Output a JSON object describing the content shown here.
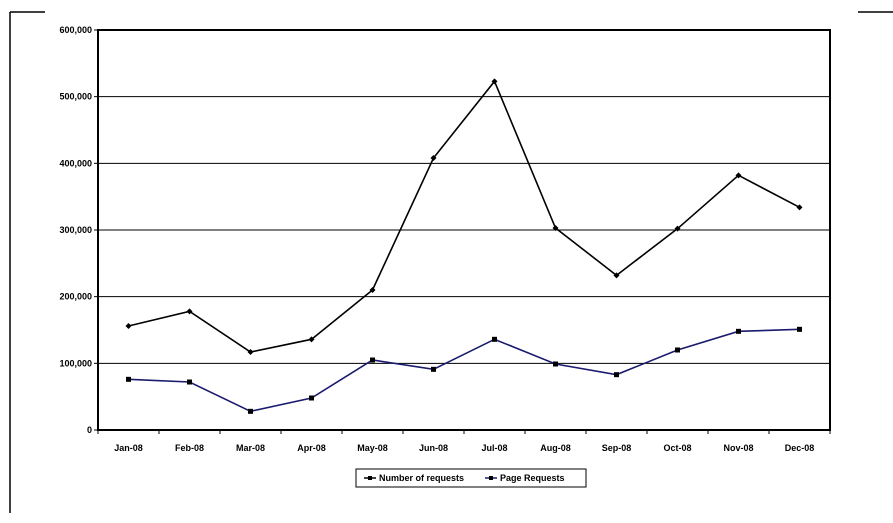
{
  "chart_data": {
    "type": "line",
    "title": "",
    "xlabel": "",
    "ylabel": "",
    "categories": [
      "Jan-08",
      "Feb-08",
      "Mar-08",
      "Apr-08",
      "May-08",
      "Jun-08",
      "Jul-08",
      "Aug-08",
      "Sep-08",
      "Oct-08",
      "Nov-08",
      "Dec-08"
    ],
    "y_tick_labels": [
      "0",
      "100,000",
      "200,000",
      "300,000",
      "400,000",
      "500,000",
      "600,000"
    ],
    "ylim": [
      0,
      600000
    ],
    "grid": "horizontal",
    "legend_position": "bottom",
    "series": [
      {
        "name": "Number of requests",
        "color": "#000000",
        "marker": "diamond",
        "values": [
          156000,
          178000,
          117000,
          136000,
          210000,
          408000,
          523000,
          303000,
          232000,
          302000,
          382000,
          334000
        ]
      },
      {
        "name": "Page Requests",
        "color": "#1a1a6e",
        "marker": "square",
        "values": [
          76000,
          72000,
          28000,
          48000,
          105000,
          91000,
          136000,
          99000,
          83000,
          120000,
          148000,
          151000
        ]
      }
    ]
  }
}
